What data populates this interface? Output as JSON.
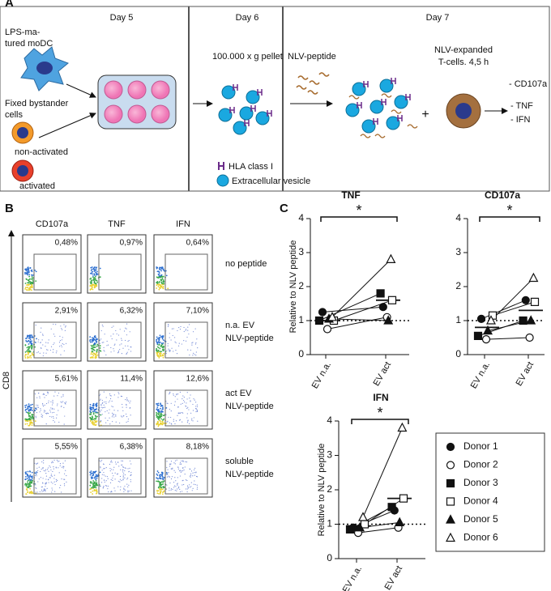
{
  "panel_a": {
    "label": "A",
    "days": [
      "Day 5",
      "Day 6",
      "Day 7"
    ],
    "lps_label": [
      "LPS-ma-",
      "tured moDC"
    ],
    "bystander_label": [
      "Fixed bystander",
      "cells"
    ],
    "non_activated": "non-activated",
    "activated": "activated",
    "pellet": "100.000 x g pellet",
    "legend": [
      "HLA class I",
      "Extracellular vesicle"
    ],
    "peptide": "NLV-peptide",
    "tcells": [
      "NLV-expanded",
      "T-cells. 4,5 h"
    ],
    "plus": "+",
    "readouts": [
      "- CD107a",
      "- TNF",
      "- IFN"
    ]
  },
  "panel_b": {
    "label": "B",
    "y_label": "CD8",
    "columns": [
      "CD107a",
      "TNF",
      "IFN"
    ],
    "rows": [
      {
        "label": [
          "no peptide"
        ],
        "percentages": [
          "0,48%",
          "0,97%",
          "0,64%"
        ]
      },
      {
        "label": [
          "n.a. EV",
          "NLV-peptide"
        ],
        "percentages": [
          "2,91%",
          "6,32%",
          "7,10%"
        ]
      },
      {
        "label": [
          "act EV",
          "NLV-peptide"
        ],
        "percentages": [
          "5,61%",
          "11,4%",
          "12,6%"
        ]
      },
      {
        "label": [
          "soluble",
          "NLV-peptide"
        ],
        "percentages": [
          "5,55%",
          "6,38%",
          "8,18%"
        ]
      }
    ]
  },
  "panel_c": {
    "label": "C",
    "legend": [
      {
        "name": "Donor 1",
        "shape": "circle",
        "filled": true
      },
      {
        "name": "Donor 2",
        "shape": "circle",
        "filled": false
      },
      {
        "name": "Donor 3",
        "shape": "square",
        "filled": true
      },
      {
        "name": "Donor 4",
        "shape": "square",
        "filled": false
      },
      {
        "name": "Donor 5",
        "shape": "triangle",
        "filled": true
      },
      {
        "name": "Donor 6",
        "shape": "triangle",
        "filled": false
      }
    ],
    "charts": [
      {
        "type": "scatter",
        "title": "TNF",
        "y_label": "Relative to NLV peptide",
        "categories": [
          "EV n.a.",
          "EV act"
        ],
        "ylim": [
          0,
          4
        ],
        "yticks": [
          0,
          1,
          2,
          3,
          4
        ],
        "reference": 1,
        "significance": "*",
        "means": [
          1.0,
          1.6
        ],
        "series": [
          {
            "values": [
              1.25,
              1.4
            ]
          },
          {
            "values": [
              0.75,
              1.1
            ]
          },
          {
            "values": [
              1.0,
              1.8
            ]
          },
          {
            "values": [
              1.0,
              1.6
            ]
          },
          {
            "values": [
              1.05,
              1.0
            ]
          },
          {
            "values": [
              1.1,
              2.8
            ]
          }
        ]
      },
      {
        "type": "scatter",
        "title": "CD107a",
        "categories": [
          "EV n.a.",
          "EV act"
        ],
        "ylim": [
          0,
          4
        ],
        "yticks": [
          0,
          1,
          2,
          3,
          4
        ],
        "reference": 1,
        "significance": "*",
        "means": [
          0.8,
          1.3
        ],
        "series": [
          {
            "values": [
              1.05,
              1.6
            ]
          },
          {
            "values": [
              0.45,
              0.5
            ]
          },
          {
            "values": [
              0.55,
              1.0
            ]
          },
          {
            "values": [
              1.15,
              1.55
            ]
          },
          {
            "values": [
              0.7,
              1.0
            ]
          },
          {
            "values": [
              1.0,
              2.25
            ]
          }
        ]
      },
      {
        "type": "scatter",
        "title": "IFN",
        "y_label": "Relative to NLV peptide",
        "categories": [
          "EV n.a.",
          "EV act"
        ],
        "ylim": [
          0,
          4
        ],
        "yticks": [
          0,
          1,
          2,
          3,
          4
        ],
        "reference": 1,
        "significance": "*",
        "means": [
          0.95,
          1.75
        ],
        "series": [
          {
            "values": [
              0.9,
              1.4
            ]
          },
          {
            "values": [
              0.75,
              0.9
            ]
          },
          {
            "values": [
              0.85,
              1.5
            ]
          },
          {
            "values": [
              1.0,
              1.75
            ]
          },
          {
            "values": [
              0.9,
              1.05
            ]
          },
          {
            "values": [
              1.2,
              3.8
            ]
          }
        ]
      }
    ]
  }
}
